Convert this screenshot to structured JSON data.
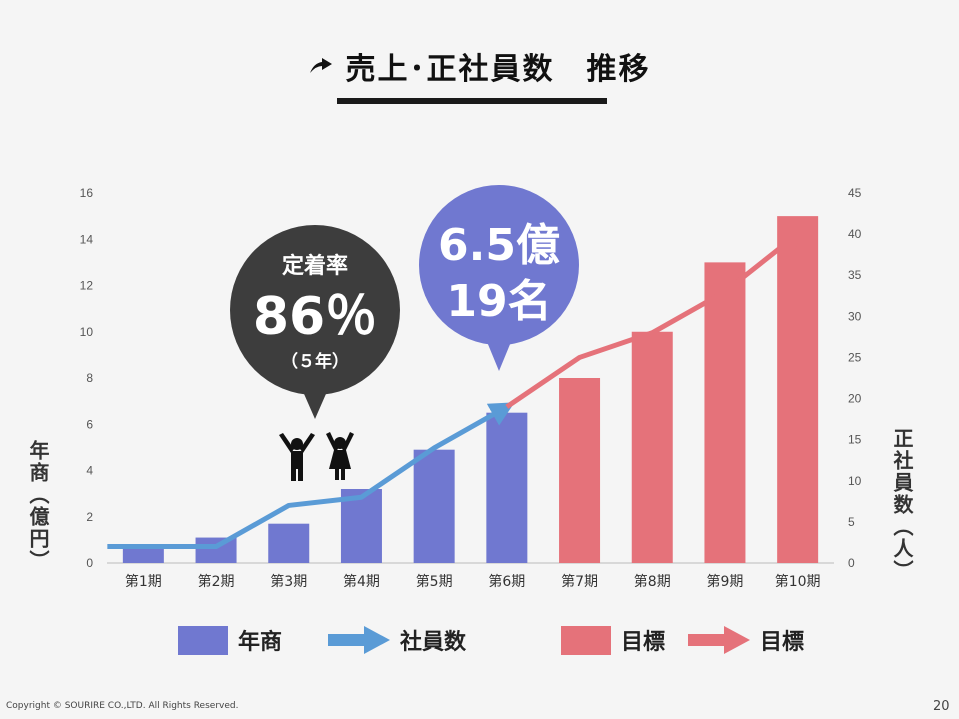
{
  "title": "売上･正社員数　推移",
  "chart_data": {
    "type": "bar",
    "categories": [
      "第1期",
      "第2期",
      "第3期",
      "第4期",
      "第5期",
      "第6期",
      "第7期",
      "第8期",
      "第9期",
      "第10期"
    ],
    "series": [
      {
        "name": "年商",
        "type": "bar",
        "values": [
          0.8,
          1.1,
          1.7,
          3.2,
          4.9,
          6.5,
          null,
          null,
          null,
          null
        ],
        "color": "#7078d0"
      },
      {
        "name": "目標",
        "type": "bar",
        "values": [
          null,
          null,
          null,
          null,
          null,
          null,
          8.0,
          10.0,
          13.0,
          15.0
        ],
        "color": "#e5727a"
      },
      {
        "name": "社員数",
        "type": "line",
        "axis": "right",
        "values": [
          2,
          2,
          7,
          8,
          14,
          19,
          null,
          null,
          null,
          null
        ],
        "color": "#5a9bd6"
      },
      {
        "name": "目標",
        "type": "line",
        "axis": "right",
        "values": [
          null,
          null,
          null,
          null,
          null,
          19,
          25,
          28,
          33,
          40
        ],
        "color": "#e5727a"
      }
    ],
    "ylabel": "年商（億円）",
    "y2label": "正社員数（人）",
    "ylim": [
      0,
      16
    ],
    "yticks": [
      0,
      2,
      4,
      6,
      8,
      10,
      12,
      14,
      16
    ],
    "y2lim": [
      0,
      45
    ],
    "y2ticks": [
      0,
      5,
      10,
      15,
      20,
      25,
      30,
      35,
      40,
      45
    ],
    "legend": {
      "position": "bottom",
      "items": [
        {
          "label": "年商",
          "kind": "bar",
          "color": "#7078d0"
        },
        {
          "label": "社員数",
          "kind": "arrow",
          "color": "#5a9bd6"
        },
        {
          "label": "目標",
          "kind": "bar",
          "color": "#e5727a"
        },
        {
          "label": "目標",
          "kind": "arrow",
          "color": "#e5727a"
        }
      ]
    },
    "annotations": [
      {
        "type": "callout",
        "color": "#3d3d3d",
        "line1": "定着率",
        "line2": "86％",
        "line3": "（５年）",
        "category_index": 2
      },
      {
        "type": "callout",
        "color": "#7078d0",
        "line1": "6.5億",
        "line2": "19名",
        "category_index": 5
      }
    ]
  },
  "footer": {
    "copyright": "Copyright © SOURIRE CO.,LTD. All Rights Reserved.",
    "page_number": "20"
  }
}
